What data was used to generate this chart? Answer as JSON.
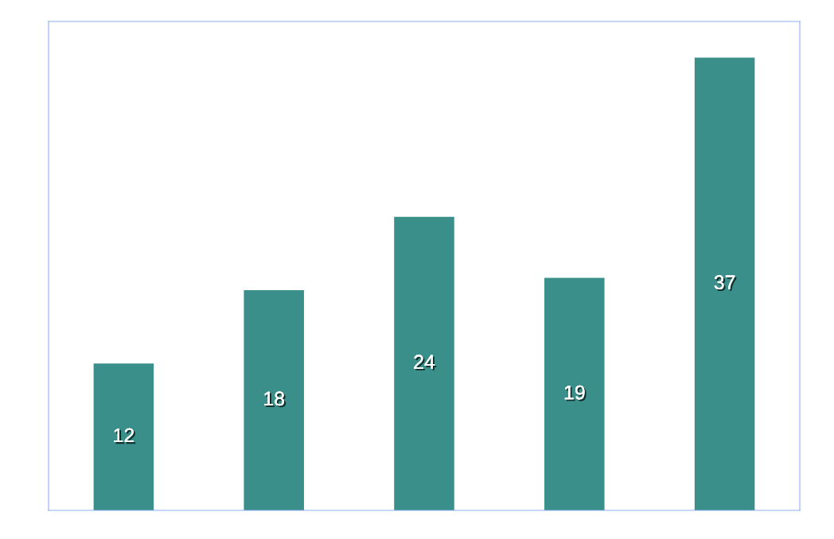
{
  "chart_data": {
    "type": "bar",
    "categories": [
      null,
      null,
      null,
      null,
      null
    ],
    "values": [
      12,
      18,
      24,
      19,
      37
    ],
    "color": "#3a8f8a",
    "data_labels": true,
    "legend": false,
    "tick_labels": false
  }
}
